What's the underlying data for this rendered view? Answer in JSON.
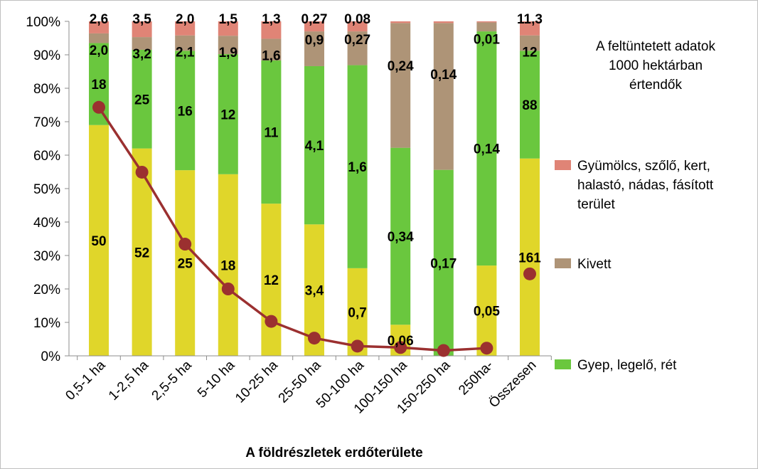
{
  "chart_data": {
    "type": "bar",
    "stacked": true,
    "percent_stacked": true,
    "categories": [
      "0,5-1 ha",
      "1-2,5 ha",
      "2,5-5 ha",
      "5-10 ha",
      "10-25 ha",
      "25-50 ha",
      "50-100 ha",
      "100-150 ha",
      "150-250 ha",
      "250ha-",
      "Összesen"
    ],
    "xlabel": "A földrészletek erdőterülete",
    "y_ticks": [
      "0%",
      "10%",
      "20%",
      "30%",
      "40%",
      "50%",
      "60%",
      "70%",
      "80%",
      "90%",
      "100%"
    ],
    "ylim": [
      0,
      100
    ],
    "grid": false,
    "legend_position": "right",
    "note_lines": [
      "A feltüntetett adatok",
      "1000 hektárban",
      "értendők"
    ],
    "series": [
      {
        "key": "yellow",
        "color": "#e0d62a",
        "labels": [
          "50",
          "52",
          "25",
          "18",
          "12",
          "3,4",
          "0,7",
          "0,06",
          "",
          "0,05",
          "161"
        ],
        "percent": [
          69,
          62,
          55.5,
          54.3,
          45.5,
          39.3,
          26.2,
          9.3,
          0,
          27,
          59
        ]
      },
      {
        "key": "green",
        "name": "Gyep, legelő, rét",
        "color": "#6ac73e",
        "labels": [
          "18",
          "25",
          "16",
          "12",
          "11",
          "4,1",
          "1,6",
          "0,34",
          "0,17",
          "0,14",
          "88"
        ],
        "percent": [
          24.5,
          29.5,
          35.7,
          35.9,
          42.8,
          47.3,
          60.7,
          52.9,
          55.6,
          70,
          32.2
        ]
      },
      {
        "key": "kivett",
        "name": "Kivett",
        "color": "#ae9477",
        "labels": [
          "2,0",
          "3,2",
          "2,1",
          "1,9",
          "1,6",
          "0,9",
          "0,27",
          "0,24",
          "0,14",
          "0,01",
          "12"
        ],
        "percent": [
          2.9,
          3.8,
          4.6,
          5.5,
          6.5,
          10.4,
          10.1,
          37.3,
          43.9,
          2.7,
          4.6
        ]
      },
      {
        "key": "gyumolcs",
        "name": "Gyümölcs, szőlő, kert, halastó, nádas, fásított terület",
        "color": "#e08476",
        "labels": [
          "2,6",
          "3,5",
          "2,0",
          "1,5",
          "1,3",
          "0,27",
          "0,08",
          "",
          "",
          "",
          "11,3"
        ],
        "percent": [
          3.6,
          4.7,
          4.2,
          4.3,
          5.2,
          3,
          3,
          0.5,
          0.5,
          0.3,
          4.2
        ]
      }
    ],
    "line_series": {
      "color": "#9b3030",
      "values_percent": [
        74.3,
        54.9,
        33.4,
        20,
        10.3,
        5.3,
        2.9,
        2.5,
        1.6,
        2.3,
        24.5
      ]
    },
    "legend": [
      {
        "series": "gyumolcs",
        "lines": [
          "Gyümölcs, szőlő, kert,",
          "halastó, nádas, fásított",
          "terület"
        ]
      },
      {
        "series": "kivett",
        "lines": [
          "Kivett"
        ]
      },
      {
        "series": "green",
        "lines": [
          "Gyep, legelő, rét"
        ]
      }
    ]
  }
}
